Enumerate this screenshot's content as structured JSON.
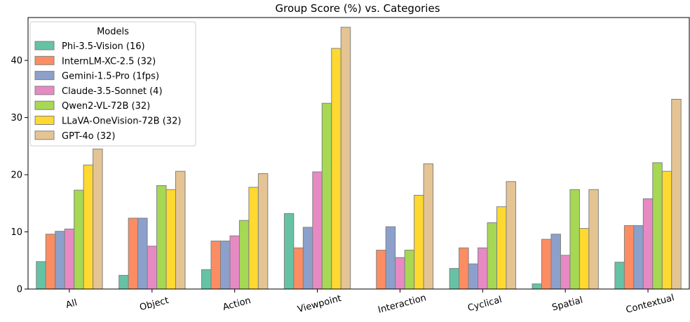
{
  "chart_data": {
    "type": "bar",
    "title": "Group Score (%) vs. Categories",
    "xlabel": "",
    "ylabel": "",
    "ylim": [
      0,
      47.5
    ],
    "yticks": [
      0,
      10,
      20,
      30,
      40
    ],
    "grid": false,
    "categories": [
      "All",
      "Object",
      "Action",
      "Viewpoint",
      "Interaction",
      "Cyclical",
      "Spatial",
      "Contextual"
    ],
    "legend": {
      "title": "Models",
      "placement": "top-left"
    },
    "series": [
      {
        "name": "Phi-3.5-Vision (16)",
        "color": "#66c2a5",
        "values": [
          4.8,
          2.4,
          3.4,
          13.2,
          0.0,
          3.6,
          0.9,
          4.7
        ]
      },
      {
        "name": "InternLM-XC-2.5 (32)",
        "color": "#fc8d62",
        "values": [
          9.6,
          12.4,
          8.4,
          7.2,
          6.8,
          7.2,
          8.7,
          11.1
        ]
      },
      {
        "name": "Gemini-1.5-Pro (1fps)",
        "color": "#8da0cb",
        "values": [
          10.1,
          12.4,
          8.4,
          10.8,
          10.9,
          4.4,
          9.6,
          11.1
        ]
      },
      {
        "name": "Claude-3.5-Sonnet (4)",
        "color": "#e78ac3",
        "values": [
          10.5,
          7.5,
          9.3,
          20.5,
          5.5,
          7.2,
          5.9,
          15.8
        ]
      },
      {
        "name": "Qwen2-VL-72B (32)",
        "color": "#a6d854",
        "values": [
          17.3,
          18.1,
          12.0,
          32.5,
          6.8,
          11.6,
          17.4,
          22.1
        ]
      },
      {
        "name": "LLaVA-OneVision-72B (32)",
        "color": "#ffd92f",
        "values": [
          21.7,
          17.4,
          17.8,
          42.1,
          16.4,
          14.4,
          10.6,
          20.6
        ]
      },
      {
        "name": "GPT-4o (32)",
        "color": "#e5c494",
        "values": [
          24.5,
          20.6,
          20.2,
          45.8,
          21.9,
          18.8,
          17.4,
          33.2
        ]
      }
    ]
  }
}
